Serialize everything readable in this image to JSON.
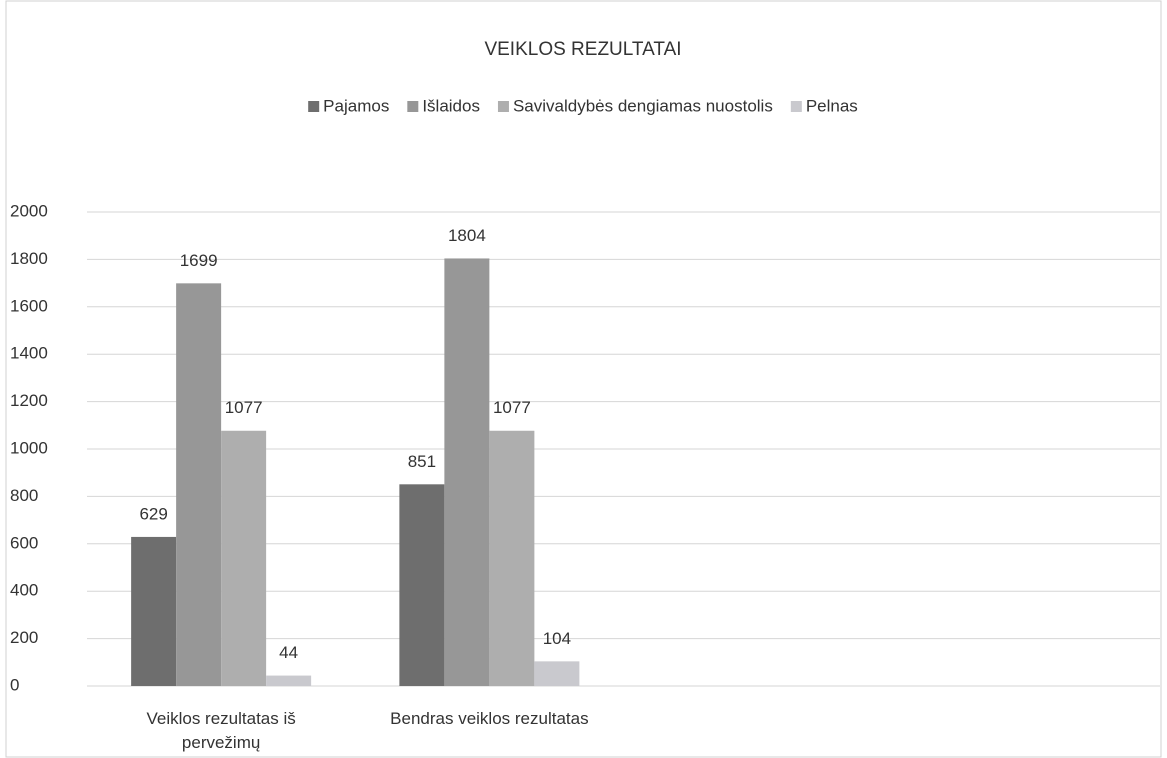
{
  "chart_data": {
    "type": "bar",
    "title": "VEIKLOS REZULTATAI",
    "categories": [
      "Veiklos rezultatas iš pervežimų",
      "Bendras veiklos rezultatas",
      null,
      null
    ],
    "series": [
      {
        "name": "Pajamos",
        "color": "#6e6e6e",
        "values": [
          629,
          851,
          null,
          null
        ]
      },
      {
        "name": "Išlaidos",
        "color": "#979797",
        "values": [
          1699,
          1804,
          null,
          null
        ]
      },
      {
        "name": "Savivaldybės dengiamas nuostolis",
        "color": "#aeaeae",
        "values": [
          1077,
          1077,
          null,
          null
        ]
      },
      {
        "name": "Pelnas",
        "color": "#c9c9ce",
        "values": [
          44,
          104,
          null,
          null
        ]
      }
    ],
    "ylim": [
      0,
      2000
    ],
    "yticks": [
      0,
      200,
      400,
      600,
      800,
      1000,
      1200,
      1400,
      1600,
      1800,
      2000
    ],
    "grid": true,
    "legend": "top"
  }
}
